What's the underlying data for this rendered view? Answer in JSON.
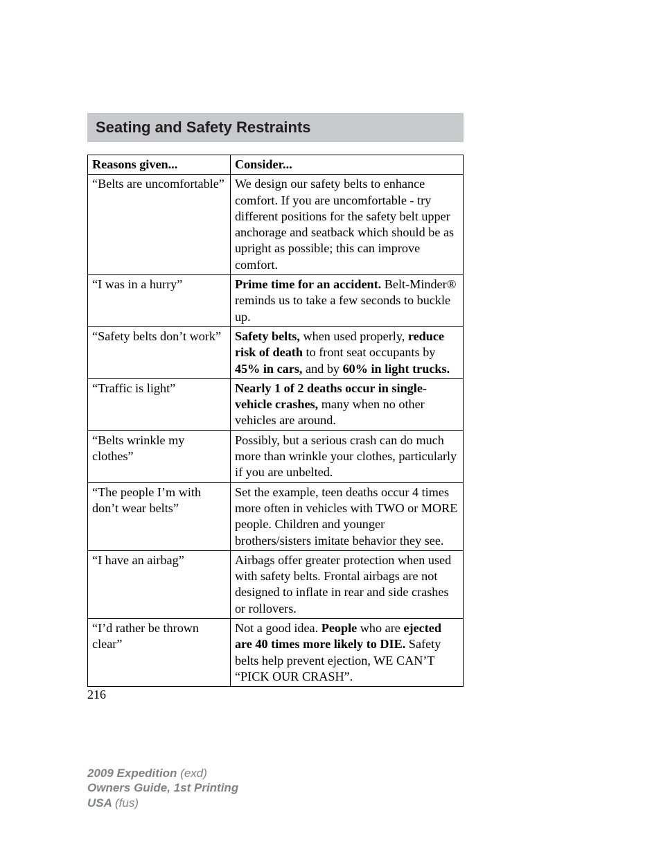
{
  "section": {
    "title": "Seating and Safety Restraints"
  },
  "table": {
    "headers": {
      "reason": "Reasons given...",
      "consider": "Consider..."
    },
    "rows": [
      {
        "reason": "“Belts are uncomfortable”",
        "consider_parts": [
          {
            "t": "We design our safety belts to enhance comfort. If you are uncomfortable - try different positions for the safety belt upper anchorage and seatback which should be as upright as possible; this can improve comfort.",
            "b": false
          }
        ]
      },
      {
        "reason": "“I was in a hurry”",
        "consider_parts": [
          {
            "t": "Prime time for an accident.",
            "b": true
          },
          {
            "t": " Belt-Minder® reminds us to take a few seconds to buckle up.",
            "b": false
          }
        ]
      },
      {
        "reason": "“Safety belts don’t work”",
        "consider_parts": [
          {
            "t": "Safety belts,",
            "b": true
          },
          {
            "t": " when used properly, ",
            "b": false
          },
          {
            "t": "reduce risk of death",
            "b": true
          },
          {
            "t": " to front seat occupants by ",
            "b": false
          },
          {
            "t": "45% in cars,",
            "b": true
          },
          {
            "t": " and by ",
            "b": false
          },
          {
            "t": "60% in light trucks.",
            "b": true
          }
        ]
      },
      {
        "reason": "“Traffic is light”",
        "consider_parts": [
          {
            "t": "Nearly 1 of 2 deaths occur in single-vehicle crashes,",
            "b": true
          },
          {
            "t": " many when no other vehicles are around.",
            "b": false
          }
        ]
      },
      {
        "reason": "“Belts wrinkle my clothes”",
        "consider_parts": [
          {
            "t": "Possibly, but a serious crash can do much more than wrinkle your clothes, particularly if you are unbelted.",
            "b": false
          }
        ]
      },
      {
        "reason": "“The people I’m with don’t wear belts”",
        "consider_parts": [
          {
            "t": "Set the example, teen deaths occur 4 times more often in vehicles with TWO or MORE people. Children and younger brothers/sisters imitate behavior they see.",
            "b": false
          }
        ]
      },
      {
        "reason": "“I have an airbag”",
        "consider_parts": [
          {
            "t": "Airbags offer greater protection when used with safety belts. Frontal airbags are not designed to inflate in rear and side crashes or rollovers.",
            "b": false
          }
        ]
      },
      {
        "reason": "“I’d rather be thrown clear”",
        "consider_parts": [
          {
            "t": "Not a good idea. ",
            "b": false
          },
          {
            "t": "People",
            "b": true
          },
          {
            "t": " who are ",
            "b": false
          },
          {
            "t": "ejected are 40 times more likely to DIE.",
            "b": true
          },
          {
            "t": " Safety belts help prevent ejection, WE CAN’T “PICK OUR CRASH”.",
            "b": false
          }
        ]
      }
    ]
  },
  "page_number": "216",
  "footer": {
    "line1_bold": "2009 Expedition ",
    "line1_italic": "(exd)",
    "line2_bold": "Owners Guide, 1st Printing",
    "line3_bold": "USA ",
    "line3_italic": "(fus)"
  }
}
